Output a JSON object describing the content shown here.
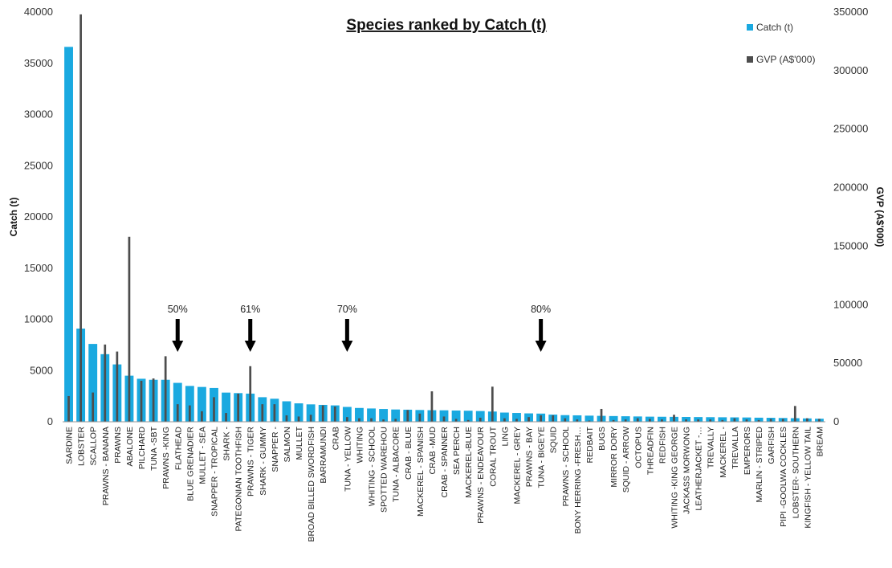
{
  "chart_data": {
    "type": "bar",
    "title": "Species ranked by Catch (t)",
    "ylabel": "Catch (t)",
    "y2label": "GVP (A$'000)",
    "ylim": [
      0,
      40000
    ],
    "y2lim": [
      0,
      350000
    ],
    "yticks": [
      "0",
      "5000",
      "10000",
      "15000",
      "20000",
      "25000",
      "30000",
      "35000",
      "40000"
    ],
    "y2ticks": [
      "0",
      "50000",
      "100000",
      "150000",
      "200000",
      "250000",
      "300000",
      "350000"
    ],
    "legend_position": "top-right",
    "grid": false,
    "categories": [
      "SARDINE",
      "LOBSTER",
      "SCALLOP",
      "PRAWNS - BANANA",
      "PRAWNS",
      "ABALONE",
      "PILCHARD",
      "TUNA -SBT",
      "PRAWNS -KING",
      "FLATHEAD",
      "BLUE GRENADIER",
      "MULLET - SEA",
      "SNAPPER - TROPICAL",
      "SHARK -",
      "PATEGONIAN TOOTHFISH",
      "PRAWNS - TIGER",
      "SHARK - GUMMY",
      "SNAPPER -",
      "SALMON",
      "MULLET",
      "BROAD BILLED SWORDFISH",
      "BARRAMUNDI",
      "CRAB",
      "TUNA - YELLOW",
      "WHITING",
      "WHITING - SCHOOL",
      "SPOTTED WAREHOU",
      "TUNA - ALBACORE",
      "CRAB - BLUE",
      "MACKEREL - SPANISH",
      "CRAB -MUD",
      "CRAB - SPANNER",
      "SEA PERCH",
      "MACKEREL-BLUE",
      "PRAWNS - ENDEAVOUR",
      "CORAL TROUT",
      "LING",
      "MACKEREL - GREY",
      "PRAWNS - BAY",
      "TUNA - BIGEYE",
      "SQUID",
      "PRAWNS - SCHOOL",
      "BONY HERRING -FRESH…",
      "REDBAIT",
      "BUGS",
      "MIRROR DORY",
      "SQUID - ARROW",
      "OCTOPUS",
      "THREADFIN",
      "REDFISH",
      "WHITING -KING GEORGE",
      "JACKASS MORWONG",
      "LEATHERJACKET -…",
      "TREVALLY",
      "MACKEREL -",
      "TREVALLA",
      "EMPERORS",
      "MARLIN - STRIPED",
      "GARFISH",
      "PIPI -GOOLWA COCKLES",
      "LOBSTER- SOUTHERN",
      "KINGFISH - YELLOW TAIL",
      "BREAM"
    ],
    "series": [
      {
        "name": "Catch (t)",
        "axis": "left",
        "color": "#1aa9e0",
        "values": [
          36600,
          9100,
          7600,
          6600,
          5600,
          4500,
          4200,
          4100,
          4100,
          3800,
          3500,
          3400,
          3300,
          2850,
          2800,
          2750,
          2400,
          2250,
          2000,
          1800,
          1700,
          1650,
          1600,
          1450,
          1350,
          1300,
          1250,
          1200,
          1180,
          1150,
          1130,
          1120,
          1100,
          1080,
          1050,
          1000,
          900,
          860,
          820,
          800,
          700,
          650,
          630,
          600,
          580,
          560,
          540,
          520,
          500,
          490,
          480,
          470,
          460,
          450,
          440,
          430,
          420,
          400,
          390,
          370,
          350,
          330,
          300
        ]
      },
      {
        "name": "GVP (A$'000)",
        "axis": "right",
        "color": "#4d4d4d",
        "values": [
          22000,
          348000,
          25000,
          66000,
          60000,
          158000,
          35000,
          37000,
          56000,
          15000,
          14000,
          9000,
          21000,
          7500,
          24000,
          47500,
          15000,
          15000,
          5500,
          4500,
          6000,
          14000,
          13000,
          4000,
          3000,
          3000,
          2000,
          2500,
          10000,
          7000,
          26000,
          4500,
          2500,
          1500,
          3500,
          30000,
          3000,
          2500,
          4000,
          5500,
          5500,
          3000,
          2000,
          1000,
          11000,
          1500,
          2000,
          3000,
          2500,
          2000,
          6000,
          2000,
          2000,
          2000,
          1500,
          3000,
          2000,
          1500,
          2500,
          2500,
          13500,
          3000,
          2500
        ]
      }
    ],
    "annotations": [
      {
        "label": "50%",
        "category_index": 9
      },
      {
        "label": "61%",
        "category_index": 15
      },
      {
        "label": "70%",
        "category_index": 23
      },
      {
        "label": "80%",
        "category_index": 39
      }
    ]
  }
}
